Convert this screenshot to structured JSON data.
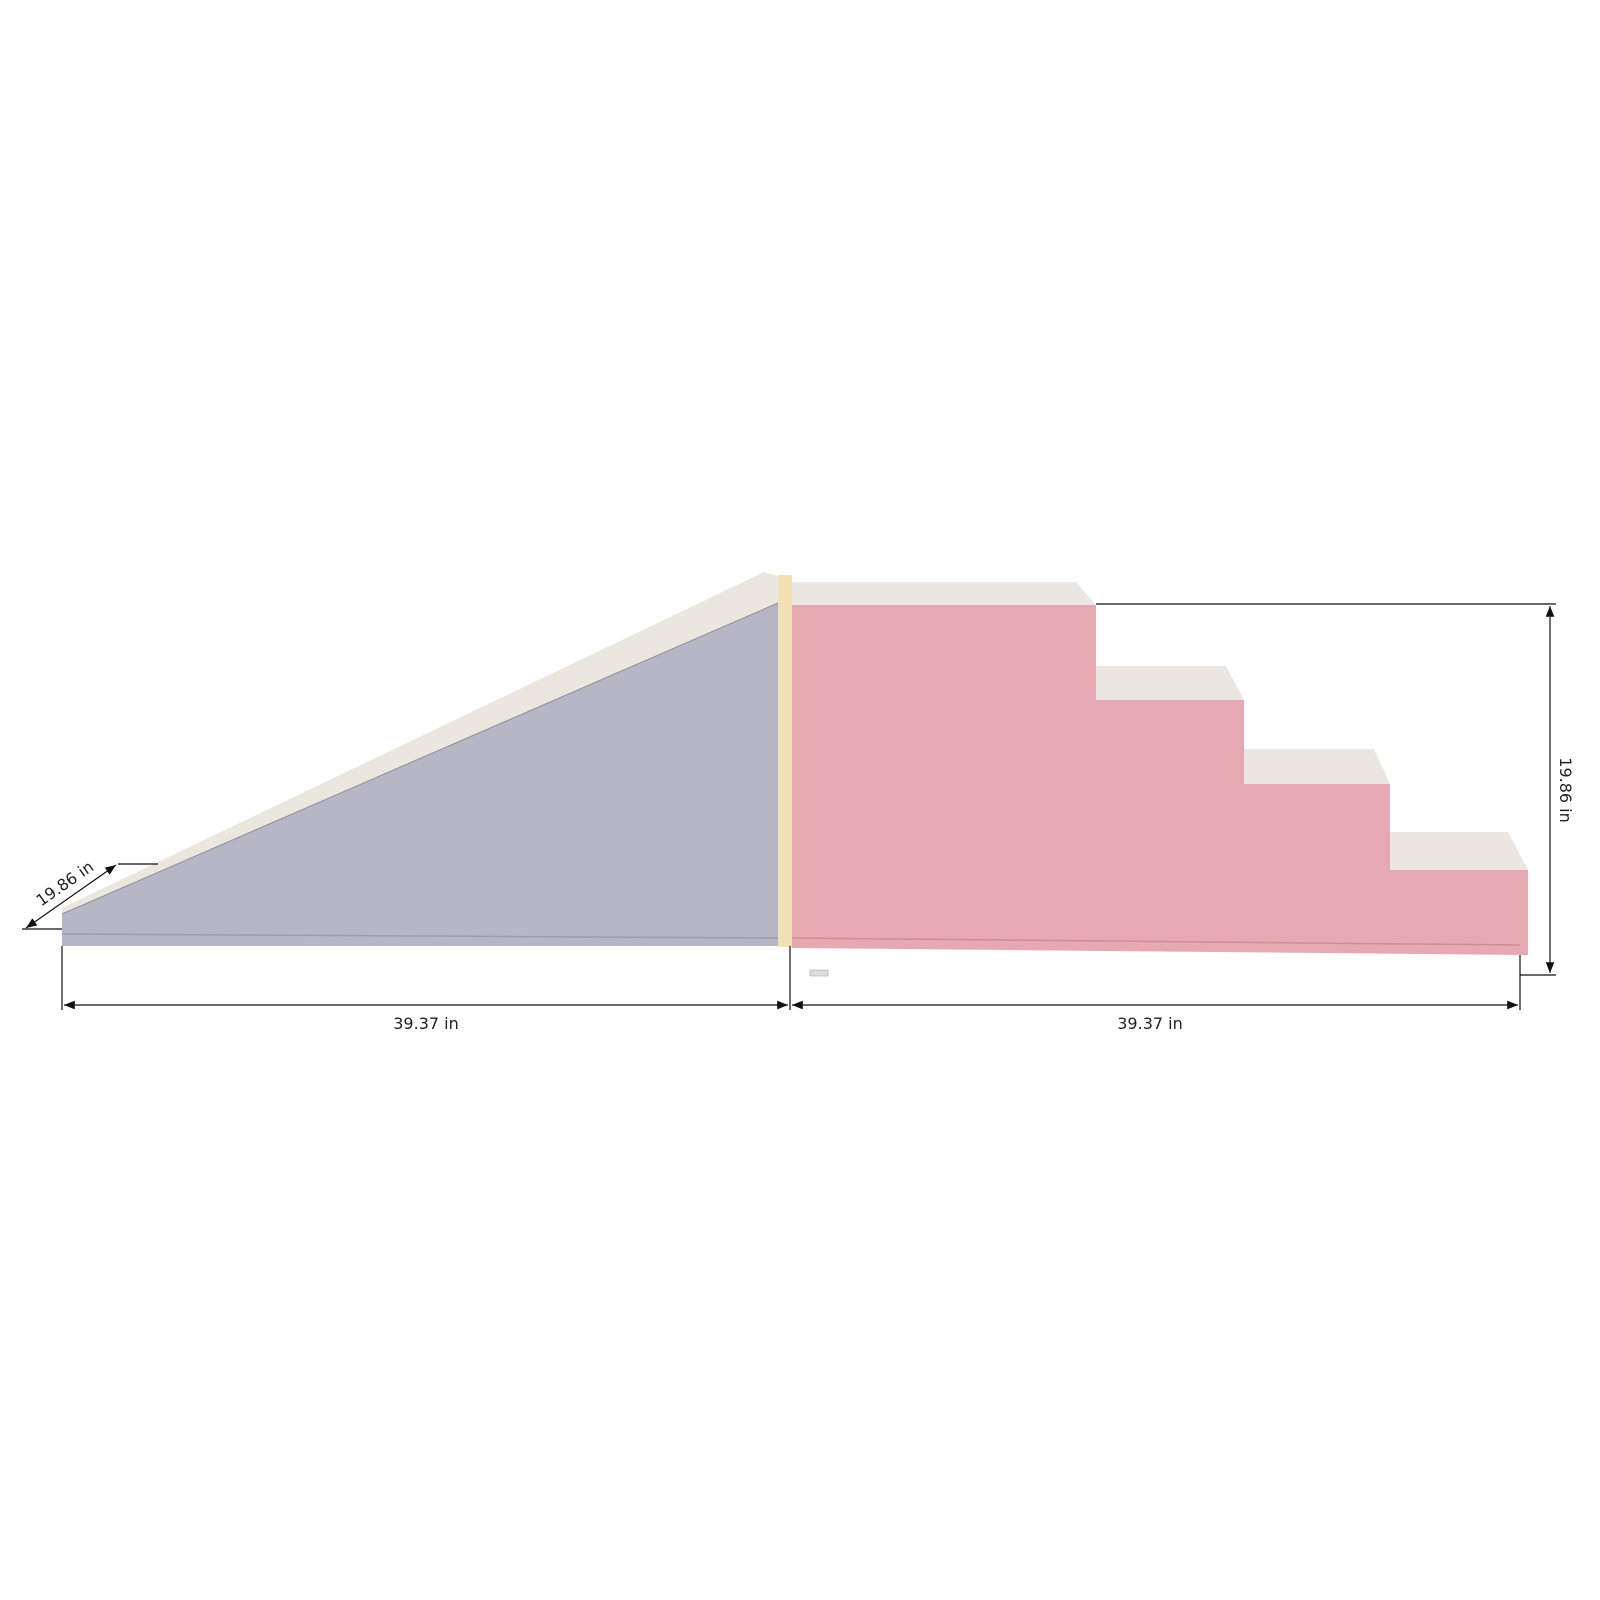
{
  "dimensions": {
    "ramp_length": "39.37 in",
    "stairs_length": "39.37 in",
    "height": "19.86 in",
    "depth": "19.86 in"
  },
  "colors": {
    "background": "#ffffff",
    "ramp_face": "#b6b6c4",
    "stairs_face": "#e6a9b1",
    "top_surface": "#ebe6e1",
    "joint": "#f1e1b4",
    "dimension_line": "#111111"
  }
}
